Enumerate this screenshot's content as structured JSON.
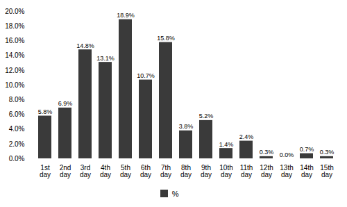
{
  "chart_data": {
    "type": "bar",
    "categories": [
      "1st\nday",
      "2nd\nday",
      "3rd\nday",
      "4th\nday",
      "5th\nday",
      "6th\nday",
      "7th\nday",
      "8th\nday",
      "9th\nday",
      "10th\nday",
      "11th\nday",
      "12th\nday",
      "13th\nday",
      "14th\nday",
      "15th\nday"
    ],
    "series": [
      {
        "name": "%",
        "color": "#3a3a3a",
        "values": [
          5.8,
          6.9,
          14.8,
          13.1,
          18.9,
          10.7,
          15.8,
          3.8,
          5.2,
          1.4,
          2.4,
          0.3,
          0.0,
          0.7,
          0.3
        ],
        "value_labels": [
          "5.8%",
          "6.9%",
          "14.8%",
          "13.1%",
          "18.9%",
          "10.7%",
          "15.8%",
          "3.8%",
          "5.2%",
          "1.4%",
          "2.4%",
          "0.3%",
          "0.0%",
          "0.7%",
          "0.3%"
        ]
      }
    ],
    "ylim": [
      0,
      20
    ],
    "yticks": [
      {
        "value": 0,
        "label": "0.0%"
      },
      {
        "value": 2,
        "label": "2.0%"
      },
      {
        "value": 4,
        "label": "4.0%"
      },
      {
        "value": 6,
        "label": "6.0%"
      },
      {
        "value": 8,
        "label": "8.0%"
      },
      {
        "value": 10,
        "label": "10.0%"
      },
      {
        "value": 12,
        "label": "12.0%"
      },
      {
        "value": 14,
        "label": "14.0%"
      },
      {
        "value": 16,
        "label": "16.0%"
      },
      {
        "value": 18,
        "label": "18.0%"
      },
      {
        "value": 20,
        "label": "20.0%"
      }
    ],
    "grid": false,
    "legend": "bottom",
    "data_labels": true
  }
}
